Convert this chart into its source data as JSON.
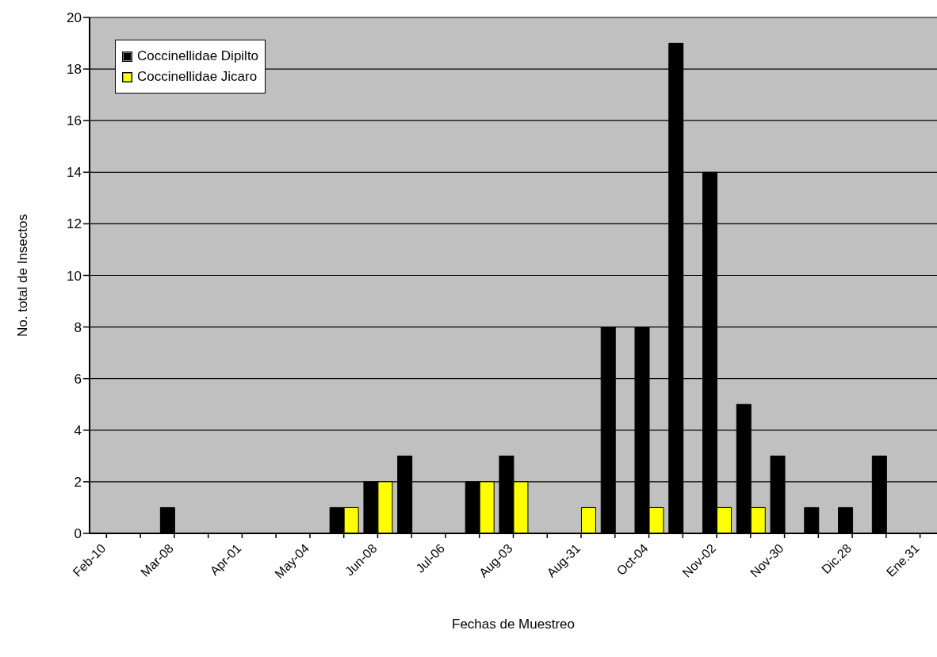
{
  "chart_data": {
    "type": "bar",
    "xlabel": "Fechas de Muestreo",
    "ylabel": "No. total de Insectos",
    "categories": [
      "Feb-10",
      null,
      "Mar-08",
      null,
      "Apr-01",
      null,
      "May-04",
      null,
      "Jun-08",
      null,
      "Jul-06",
      null,
      "Aug-03",
      null,
      "Aug-31",
      null,
      "Oct-04",
      null,
      "Nov-02",
      null,
      "Nov-30",
      null,
      "Dic.28",
      null,
      "Ene.31"
    ],
    "series": [
      {
        "name": "Coccinellidae Dipilto",
        "color": "#000000",
        "values": [
          null,
          null,
          1,
          null,
          null,
          null,
          null,
          1,
          2,
          3,
          null,
          2,
          3,
          null,
          null,
          8,
          8,
          19,
          14,
          5,
          3,
          1,
          1,
          3,
          null
        ]
      },
      {
        "name": "Coccinellidae Jicaro",
        "color": "#ffff00",
        "values": [
          null,
          null,
          null,
          null,
          null,
          null,
          null,
          1,
          2,
          null,
          null,
          2,
          2,
          null,
          1,
          null,
          1,
          null,
          1,
          1,
          null,
          null,
          null,
          null,
          null
        ]
      }
    ],
    "ylim": [
      0,
      20
    ],
    "yticks": [
      0,
      2,
      4,
      6,
      8,
      10,
      12,
      14,
      16,
      18,
      20
    ],
    "grid": "y",
    "legend": "top left"
  }
}
